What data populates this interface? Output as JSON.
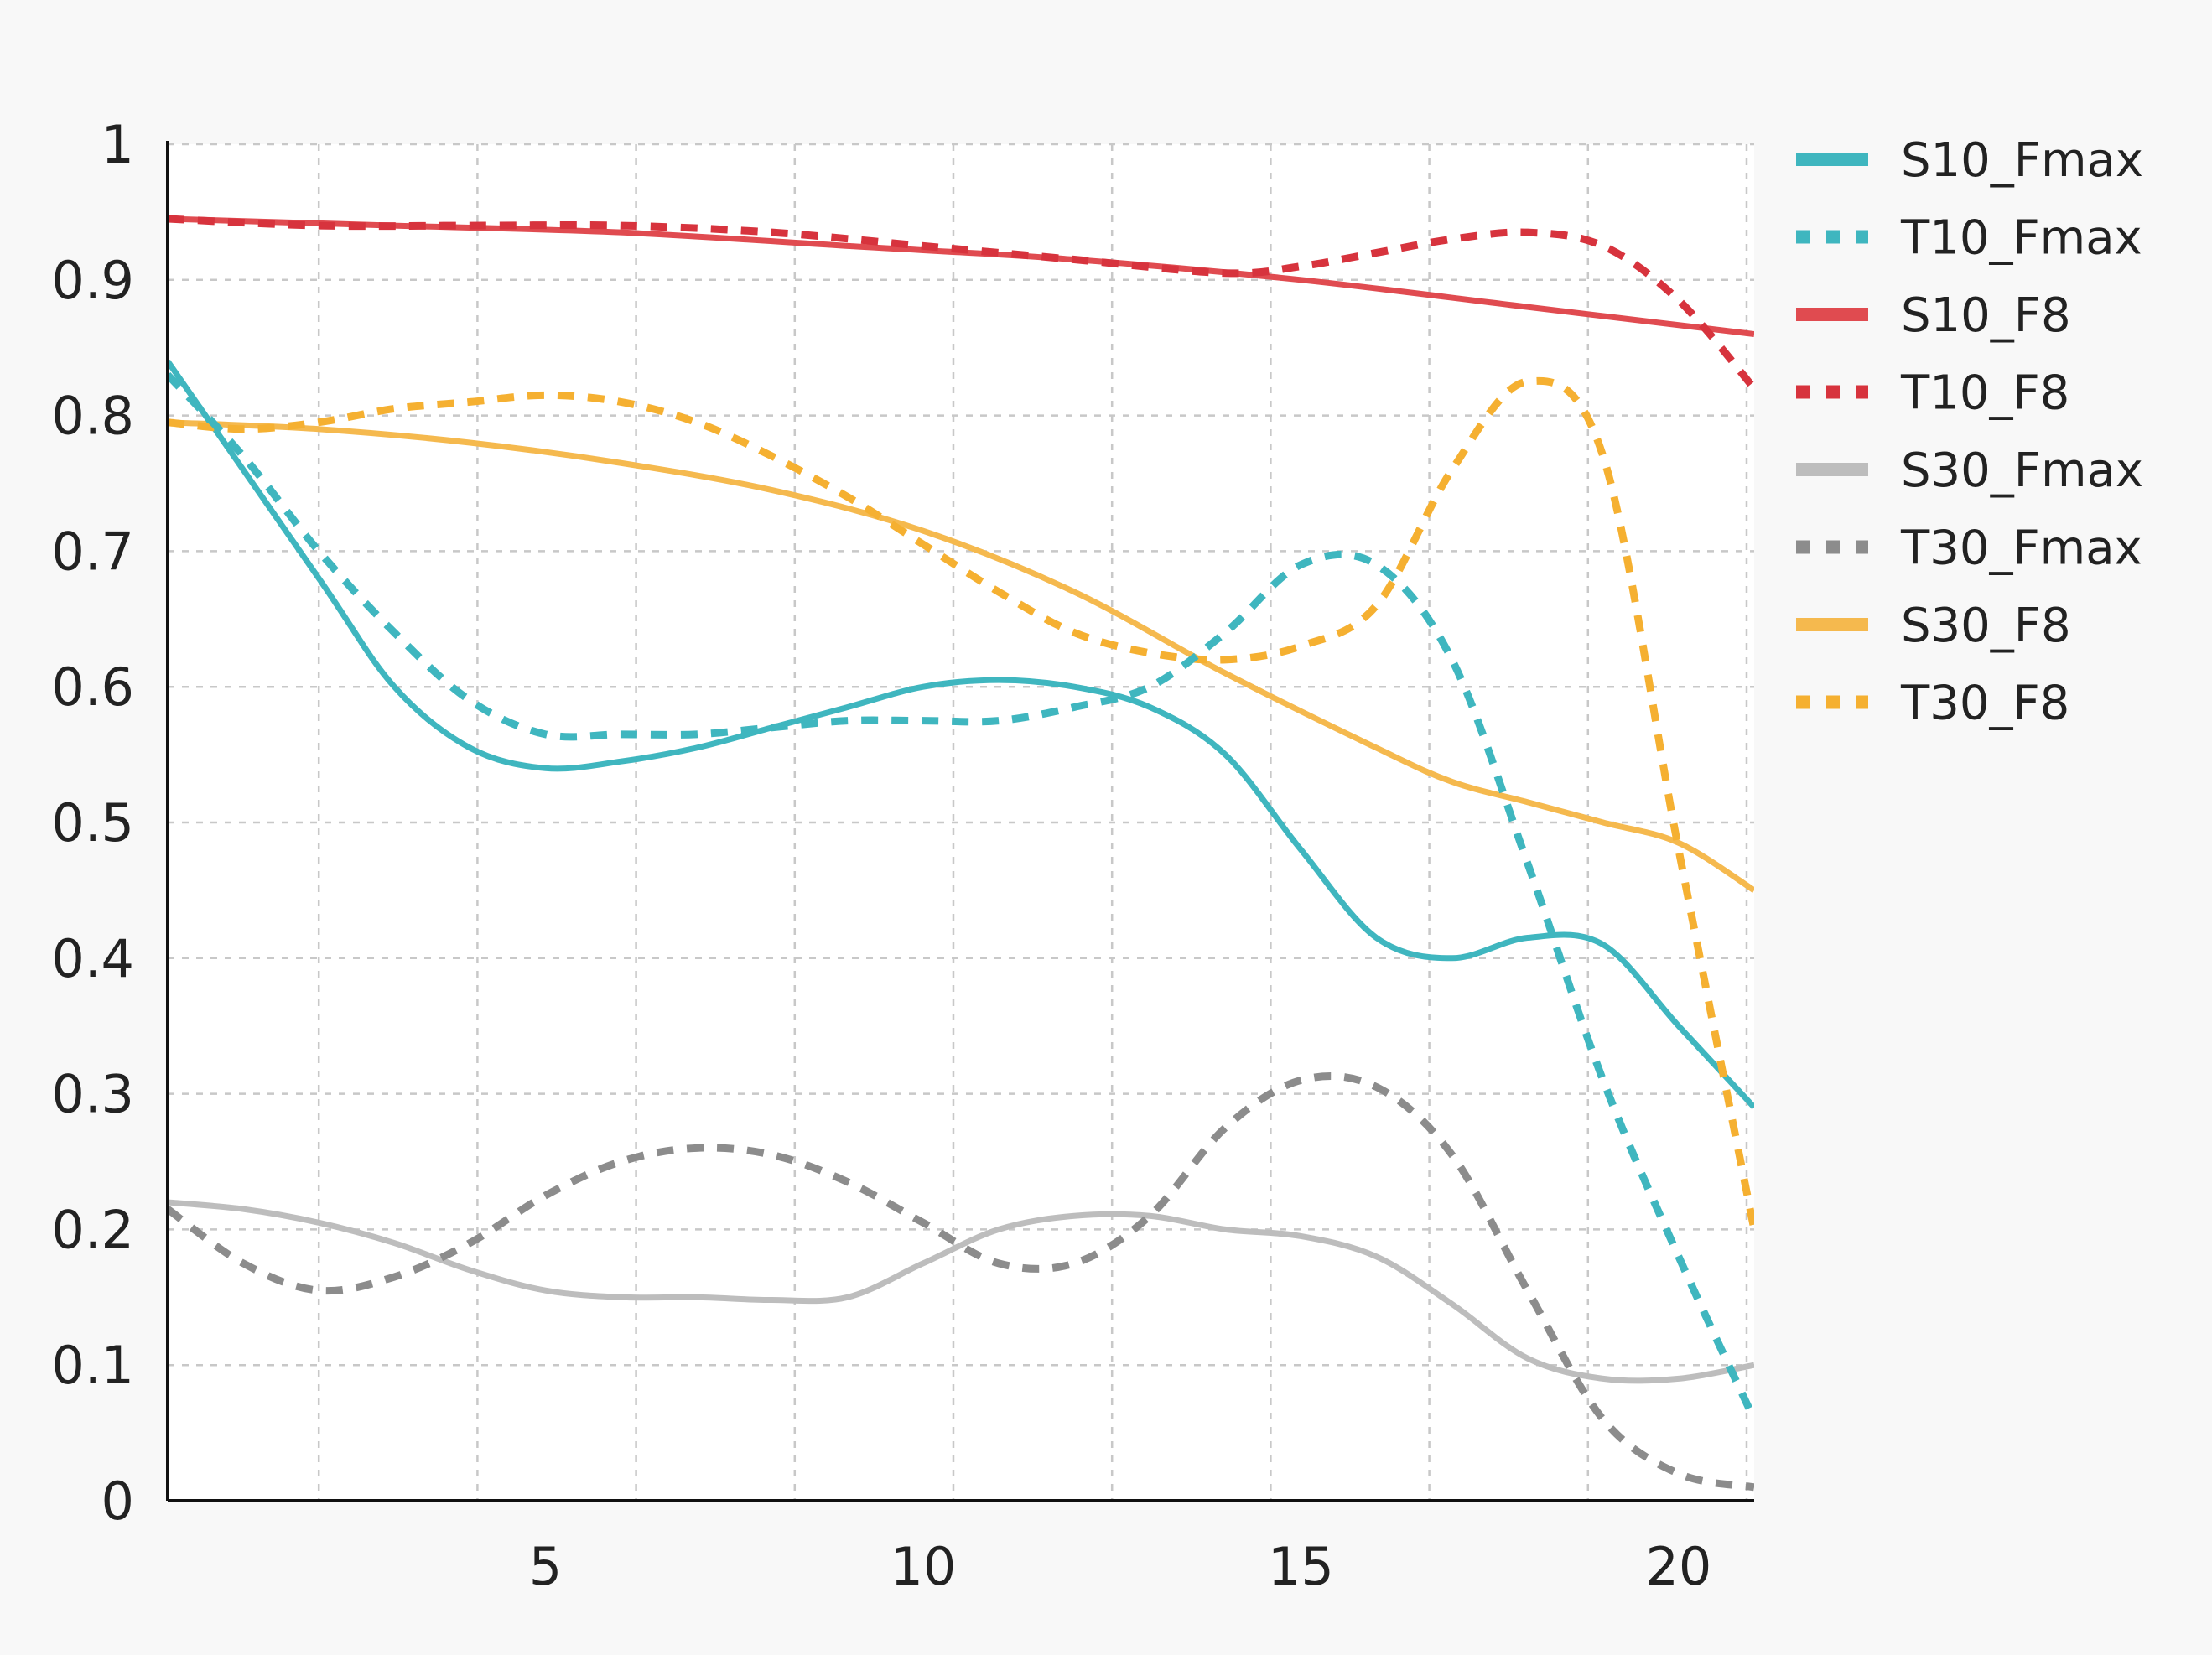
{
  "chart_data": {
    "type": "line",
    "title": "",
    "xlabel": "",
    "ylabel": "",
    "xlim": [
      0,
      21
    ],
    "ylim": [
      0,
      1
    ],
    "x_ticks": [
      5,
      10,
      15,
      20
    ],
    "y_ticks": [
      0,
      0.1,
      0.2,
      0.3,
      0.4,
      0.5,
      0.6,
      0.7,
      0.8,
      0.9,
      1
    ],
    "y_tick_labels": [
      "0",
      "0.1",
      "0.2",
      "0.3",
      "0.4",
      "0.5",
      "0.6",
      "0.7",
      "0.8",
      "0.9",
      "1"
    ],
    "x_tick_labels": [
      "5",
      "10",
      "15",
      "20"
    ],
    "grid": true,
    "legend_position": "top-right",
    "series": [
      {
        "name": "S10_Fmax",
        "color": "#3fb6bf",
        "dashed": false,
        "x": [
          0,
          2,
          3,
          4,
          5,
          6,
          7,
          8,
          9,
          10,
          11,
          12,
          13,
          14,
          15,
          16,
          17,
          18,
          19,
          20,
          21
        ],
        "y": [
          0.84,
          0.68,
          0.6,
          0.555,
          0.54,
          0.545,
          0.555,
          0.57,
          0.585,
          0.6,
          0.605,
          0.6,
          0.585,
          0.55,
          0.48,
          0.415,
          0.4,
          0.415,
          0.41,
          0.35,
          0.29
        ]
      },
      {
        "name": "T10_Fmax",
        "color": "#3fb6bf",
        "dashed": true,
        "x": [
          0,
          1,
          2,
          3,
          4,
          5,
          6,
          7,
          8,
          9,
          10,
          11,
          12,
          13,
          14,
          15,
          16,
          17,
          18,
          19,
          20,
          21
        ],
        "y": [
          0.83,
          0.77,
          0.7,
          0.64,
          0.59,
          0.565,
          0.565,
          0.565,
          0.57,
          0.575,
          0.575,
          0.575,
          0.585,
          0.6,
          0.64,
          0.69,
          0.69,
          0.62,
          0.47,
          0.31,
          0.18,
          0.06
        ]
      },
      {
        "name": "S10_F8",
        "color": "#e04b50",
        "dashed": false,
        "x": [
          0,
          3,
          6,
          9,
          12,
          15,
          18,
          21
        ],
        "y": [
          0.945,
          0.94,
          0.935,
          0.925,
          0.915,
          0.9,
          0.88,
          0.86
        ]
      },
      {
        "name": "T10_F8",
        "color": "#d7333d",
        "dashed": true,
        "x": [
          0,
          2,
          4,
          6,
          8,
          10,
          12,
          14,
          15,
          16,
          17,
          18,
          19,
          20,
          21
        ],
        "y": [
          0.945,
          0.94,
          0.94,
          0.94,
          0.935,
          0.925,
          0.915,
          0.905,
          0.91,
          0.92,
          0.93,
          0.935,
          0.925,
          0.885,
          0.82
        ]
      },
      {
        "name": "S30_Fmax",
        "color": "#bdbdbd",
        "dashed": false,
        "x": [
          0,
          1,
          2,
          3,
          4,
          5,
          6,
          7,
          8,
          9,
          10,
          11,
          12,
          13,
          14,
          15,
          16,
          17,
          18,
          19,
          20,
          21
        ],
        "y": [
          0.22,
          0.215,
          0.205,
          0.19,
          0.17,
          0.155,
          0.15,
          0.15,
          0.148,
          0.15,
          0.175,
          0.2,
          0.21,
          0.21,
          0.2,
          0.195,
          0.18,
          0.145,
          0.105,
          0.09,
          0.09,
          0.1
        ]
      },
      {
        "name": "T30_Fmax",
        "color": "#8c8c8c",
        "dashed": true,
        "x": [
          0,
          1,
          2,
          3,
          4,
          5,
          6,
          7,
          8,
          9,
          10,
          11,
          12,
          13,
          14,
          15,
          16,
          17,
          18,
          19,
          20,
          21
        ],
        "y": [
          0.215,
          0.175,
          0.155,
          0.165,
          0.19,
          0.225,
          0.25,
          0.26,
          0.255,
          0.235,
          0.205,
          0.175,
          0.175,
          0.21,
          0.275,
          0.31,
          0.305,
          0.255,
          0.155,
          0.06,
          0.02,
          0.01
        ]
      },
      {
        "name": "S30_F8",
        "color": "#f5b94e",
        "dashed": false,
        "x": [
          0,
          2,
          4,
          6,
          8,
          10,
          12,
          14,
          16,
          17,
          18,
          19,
          20,
          21
        ],
        "y": [
          0.795,
          0.79,
          0.78,
          0.765,
          0.745,
          0.715,
          0.67,
          0.61,
          0.555,
          0.53,
          0.515,
          0.5,
          0.485,
          0.45
        ]
      },
      {
        "name": "T30_F8",
        "color": "#f5b031",
        "dashed": true,
        "x": [
          0,
          1,
          2,
          3,
          4,
          5,
          6,
          7,
          8,
          9,
          10,
          11,
          12,
          13,
          14,
          15,
          16,
          17,
          18,
          19,
          20,
          21
        ],
        "y": [
          0.795,
          0.79,
          0.795,
          0.805,
          0.81,
          0.815,
          0.81,
          0.795,
          0.77,
          0.74,
          0.705,
          0.67,
          0.64,
          0.625,
          0.62,
          0.63,
          0.66,
          0.76,
          0.825,
          0.77,
          0.48,
          0.2
        ]
      }
    ]
  }
}
